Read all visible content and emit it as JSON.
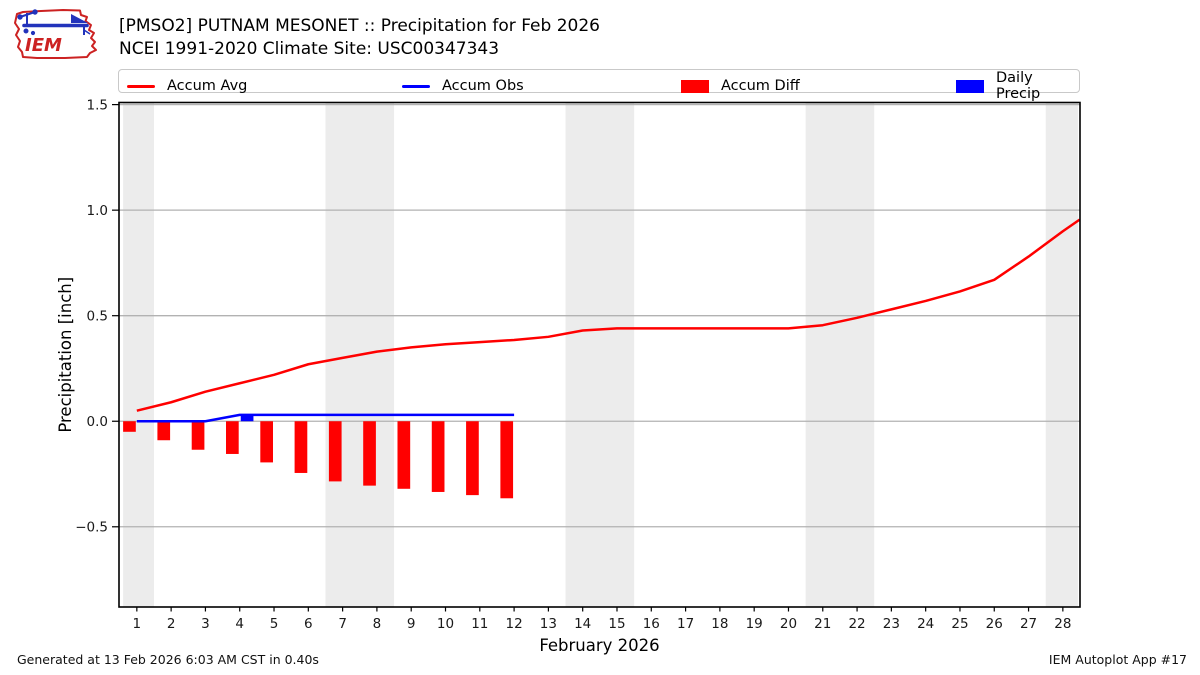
{
  "header": {
    "logo_text": "IEM",
    "title_line1": "[PMSO2] PUTNAM MESONET :: Precipitation for Feb 2026",
    "title_line2": "NCEI 1991-2020 Climate Site: USC00347343"
  },
  "legend": {
    "items": [
      {
        "label": "Accum Avg",
        "swatch": "line",
        "color": "#ff0000"
      },
      {
        "label": "Accum Obs",
        "swatch": "line",
        "color": "#0000ff"
      },
      {
        "label": "Accum Diff",
        "swatch": "rect",
        "color": "#ff0000"
      },
      {
        "label": "Daily Precip",
        "swatch": "rect",
        "color": "#0000ff"
      }
    ]
  },
  "chart_data": {
    "type": "line+bar",
    "title": "[PMSO2] PUTNAM MESONET :: Precipitation for Feb 2026",
    "xlabel": "February 2026",
    "ylabel": "Precipitation [inch]",
    "xlim": [
      0.48,
      28.5
    ],
    "ylim": [
      -0.88,
      1.51
    ],
    "grid": "horizontal",
    "legend_position": "top",
    "x_ticks": [
      1,
      2,
      3,
      4,
      5,
      6,
      7,
      8,
      9,
      10,
      11,
      12,
      13,
      14,
      15,
      16,
      17,
      18,
      19,
      20,
      21,
      22,
      23,
      24,
      25,
      26,
      27,
      28
    ],
    "y_ticks": [
      -0.5,
      0.0,
      0.5,
      1.0,
      1.5
    ],
    "y_tick_labels": [
      "−0.5",
      "0.0",
      "0.5",
      "1.0",
      "1.5"
    ],
    "weekend_bands": [
      [
        0.6,
        1.5
      ],
      [
        6.5,
        8.5
      ],
      [
        13.5,
        15.5
      ],
      [
        20.5,
        22.5
      ],
      [
        27.5,
        28.44
      ]
    ],
    "band_color": "#ececec",
    "grid_color": "#b2b2b2",
    "axis_color": "#000000",
    "series": [
      {
        "name": "Accum Avg",
        "type": "line",
        "color": "#ff0000",
        "x": [
          1,
          2,
          3,
          4,
          5,
          6,
          7,
          8,
          9,
          10,
          11,
          12,
          13,
          14,
          15,
          16,
          17,
          18,
          19,
          20,
          21,
          22,
          23,
          24,
          25,
          26,
          27,
          28,
          28.49
        ],
        "y": [
          0.05,
          0.09,
          0.14,
          0.18,
          0.22,
          0.27,
          0.3,
          0.33,
          0.35,
          0.365,
          0.375,
          0.385,
          0.4,
          0.43,
          0.44,
          0.44,
          0.44,
          0.44,
          0.44,
          0.44,
          0.455,
          0.49,
          0.53,
          0.57,
          0.615,
          0.67,
          0.78,
          0.9,
          0.955
        ]
      },
      {
        "name": "Accum Obs",
        "type": "line",
        "color": "#0000ff",
        "x": [
          1,
          2,
          3,
          4,
          5,
          6,
          7,
          8,
          9,
          10,
          11,
          12
        ],
        "y": [
          0.0,
          0.0,
          0.0,
          0.03,
          0.03,
          0.03,
          0.03,
          0.03,
          0.03,
          0.03,
          0.03,
          0.03
        ]
      },
      {
        "name": "Accum Diff",
        "type": "bar",
        "color": "#ff0000",
        "bar_side": "left",
        "x": [
          1,
          2,
          3,
          4,
          5,
          6,
          7,
          8,
          9,
          10,
          11,
          12
        ],
        "y": [
          -0.05,
          -0.09,
          -0.135,
          -0.155,
          -0.195,
          -0.245,
          -0.285,
          -0.305,
          -0.32,
          -0.335,
          -0.35,
          -0.365
        ]
      },
      {
        "name": "Daily Precip",
        "type": "bar",
        "color": "#0000ff",
        "bar_side": "right",
        "x": [
          4
        ],
        "y": [
          0.03
        ]
      }
    ]
  },
  "footer": {
    "generated": "Generated at 13 Feb 2026 6:03 AM CST in 0.40s",
    "app": "IEM Autoplot App #17"
  }
}
